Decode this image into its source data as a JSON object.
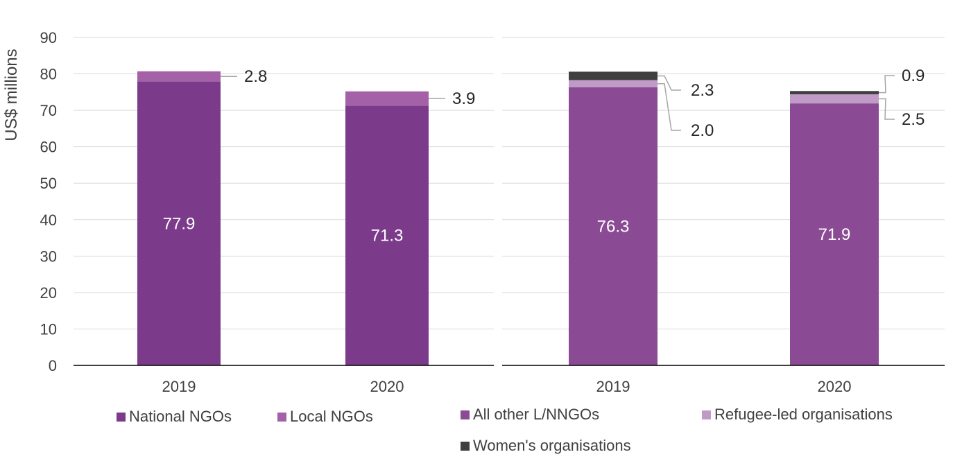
{
  "y_axis_label": "US$ millions",
  "chart_data": [
    {
      "type": "bar",
      "stacked": true,
      "categories": [
        "2019",
        "2020"
      ],
      "ylim": [
        0,
        90
      ],
      "yticks": [
        "0",
        "10",
        "20",
        "30",
        "40",
        "50",
        "60",
        "70",
        "80",
        "90"
      ],
      "ylabel": "US$ millions",
      "grid": true,
      "legend_position": "bottom",
      "series": [
        {
          "name": "National NGOs",
          "values": [
            77.9,
            71.3
          ],
          "labels": [
            "77.9",
            "71.3"
          ],
          "color": "#7b3b8a"
        },
        {
          "name": "Local NGOs",
          "values": [
            2.8,
            3.9
          ],
          "labels": [
            "2.8",
            "3.9"
          ],
          "color": "#a561a8"
        }
      ]
    },
    {
      "type": "bar",
      "stacked": true,
      "categories": [
        "2019",
        "2020"
      ],
      "ylim": [
        0,
        90
      ],
      "grid": true,
      "legend_position": "bottom",
      "series": [
        {
          "name": "All other L/NNGOs",
          "values": [
            76.3,
            71.9
          ],
          "labels": [
            "76.3",
            "71.9"
          ],
          "color": "#8b4a94"
        },
        {
          "name": "Refugee-led organisations",
          "values": [
            2.0,
            2.5
          ],
          "labels": [
            "2.0",
            "2.5"
          ],
          "color": "#c19bc8"
        },
        {
          "name": "Women's organisations",
          "values": [
            2.3,
            0.9
          ],
          "labels": [
            "2.3",
            "0.9"
          ],
          "color": "#404040"
        }
      ]
    }
  ]
}
